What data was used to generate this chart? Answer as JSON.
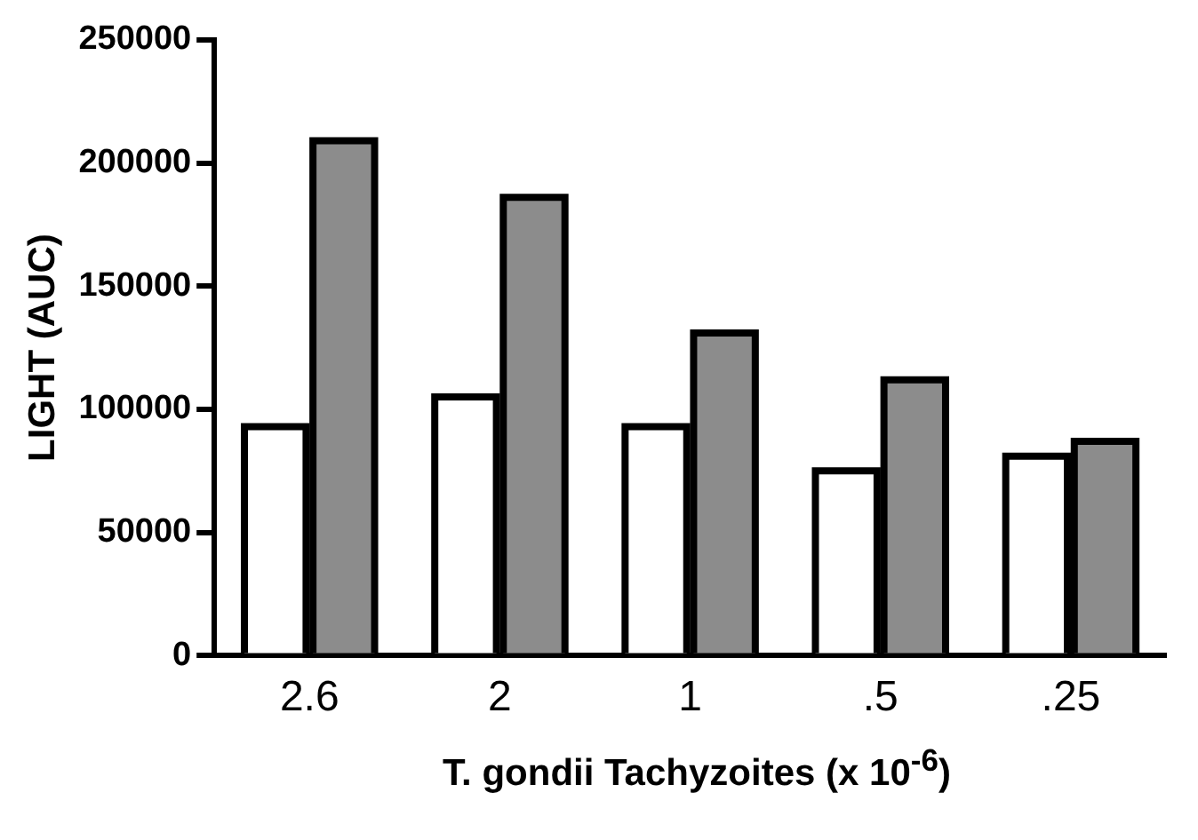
{
  "chart_data": {
    "type": "bar",
    "xlabel": "T. gondii Tachyzoites (x 10$^{-6}$)",
    "ylabel": "LIGHT (AUC)",
    "categories": [
      "2.6",
      "2",
      "1",
      ".5",
      ".25"
    ],
    "series": [
      {
        "color": "#ffffff",
        "values": [
          93000,
          105000,
          93000,
          75000,
          81000
        ]
      },
      {
        "color": "#8c8c8c",
        "values": [
          209000,
          186000,
          131000,
          112000,
          87000
        ]
      }
    ],
    "ylim": [
      0,
      250000
    ],
    "yticks": [
      0,
      50000,
      100000,
      150000,
      200000,
      250000
    ],
    "grid": false,
    "legend": false
  }
}
